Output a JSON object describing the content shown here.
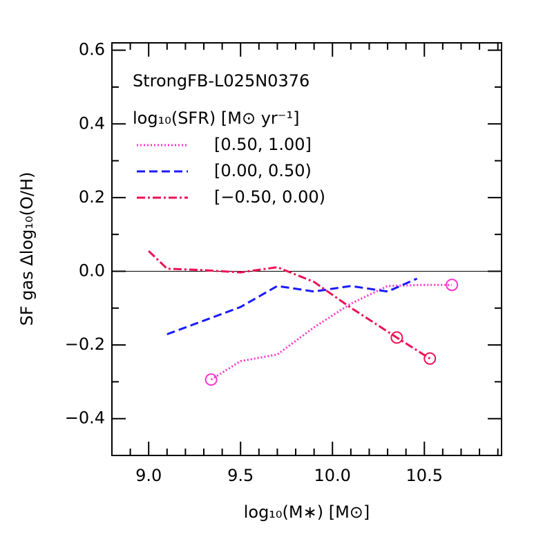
{
  "chart_data": {
    "type": "line",
    "annotation": "StrongFB-L025N0376",
    "legend_title": "log₁₀(SFR) [M⊙ yr⁻¹]",
    "xlabel": "log₁₀(M∗) [M⊙]",
    "ylabel": "SF gas Δlog₁₀(O/H)",
    "xlim": [
      8.8,
      10.92
    ],
    "ylim": [
      -0.5,
      0.62
    ],
    "xticks": [
      {
        "value": 9.0,
        "label": "9.0"
      },
      9.5,
      {
        "value": 10.0,
        "label": "10.0"
      },
      10.5
    ],
    "yticks": [
      {
        "value": -0.4,
        "label": "−0.4"
      },
      {
        "value": -0.2,
        "label": "−0.2"
      },
      {
        "value": 0,
        "label": "0.0"
      },
      0.2,
      0.4,
      0.6
    ],
    "xminorticks": [
      8.9,
      9.1,
      9.2,
      9.3,
      9.4,
      9.6,
      9.7,
      9.8,
      9.9,
      10.1,
      10.2,
      10.3,
      10.4,
      10.6,
      10.7,
      10.8,
      10.9
    ],
    "yminorticks": [
      -0.5,
      -0.3,
      -0.1,
      0.1,
      0.3,
      0.5
    ],
    "hline": 0,
    "series": [
      {
        "name": "[0.50, 1.00]",
        "color": "#ff33cc",
        "dash": "2,3",
        "x": [
          9.34,
          9.5,
          9.7,
          9.9,
          10.1,
          10.3,
          10.5,
          10.65
        ],
        "values": [
          -0.294,
          -0.244,
          -0.226,
          -0.152,
          -0.088,
          -0.04,
          -0.037,
          -0.037
        ],
        "circled": [
          0,
          7
        ]
      },
      {
        "name": "[0.00, 0.50)",
        "color": "#1a1aff",
        "dash": "12,6",
        "x": [
          9.1,
          9.3,
          9.5,
          9.7,
          9.9,
          10.1,
          10.3,
          10.46
        ],
        "values": [
          -0.171,
          -0.134,
          -0.097,
          -0.04,
          -0.055,
          -0.04,
          -0.055,
          -0.02
        ],
        "circled": []
      },
      {
        "name": "[−0.50, 0.00)",
        "color": "#ee1155",
        "dash": "12,4,3,4",
        "x": [
          9.0,
          9.1,
          9.3,
          9.5,
          9.7,
          9.9,
          10.1,
          10.35,
          10.53
        ],
        "values": [
          0.055,
          0.007,
          0.003,
          -0.003,
          0.011,
          -0.029,
          -0.099,
          -0.18,
          -0.237
        ],
        "circled": [
          7,
          8
        ]
      }
    ]
  }
}
